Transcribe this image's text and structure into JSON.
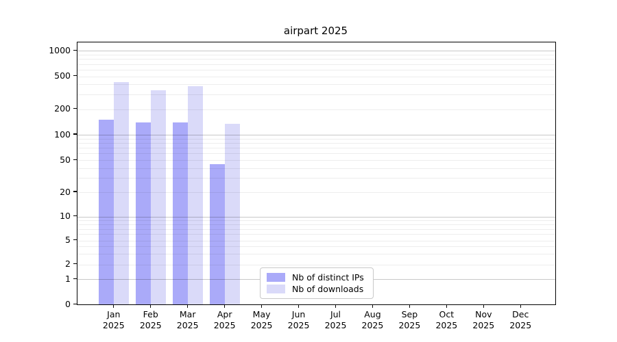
{
  "chart_data": {
    "type": "bar",
    "title": "airpart 2025",
    "categories": [
      "Jan",
      "Feb",
      "Mar",
      "Apr",
      "May",
      "Jun",
      "Jul",
      "Aug",
      "Sep",
      "Oct",
      "Nov",
      "Dec"
    ],
    "category_year": "2025",
    "series": [
      {
        "name": "Nb of distinct IPs",
        "color": "#aaaaf9",
        "values": [
          150,
          140,
          140,
          45,
          null,
          null,
          null,
          null,
          null,
          null,
          null,
          null
        ]
      },
      {
        "name": "Nb of downloads",
        "color": "#dadaf9",
        "values": [
          430,
          340,
          380,
          135,
          null,
          null,
          null,
          null,
          null,
          null,
          null,
          null
        ]
      }
    ],
    "y_ticks": [
      0,
      1,
      2,
      5,
      10,
      20,
      50,
      100,
      200,
      500,
      1000
    ],
    "ylim": [
      0,
      1000
    ],
    "y_scale": "quasi-log",
    "grid": "horizontal only, minor and major lines",
    "legend_position": "lower center",
    "colors": {
      "axis": "#000000",
      "grid_minor": "rgba(0,0,0,0.07)",
      "grid_major": "rgba(0,0,0,0.22)",
      "legend_border": "#c8c8c8"
    }
  }
}
